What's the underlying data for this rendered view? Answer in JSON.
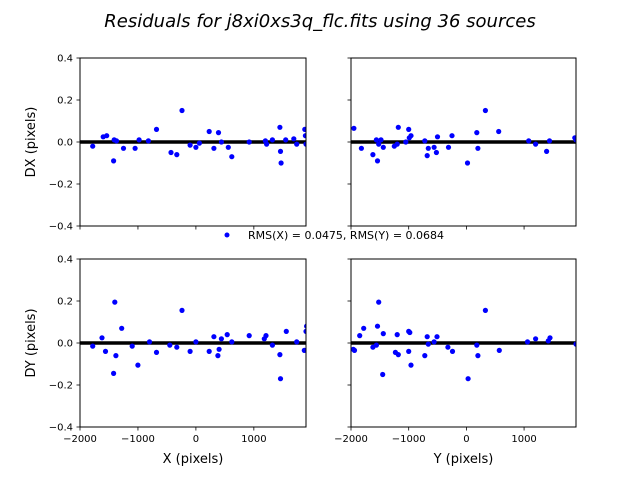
{
  "figure": {
    "title": "Residuals for j8xi0xs3q_flc.fits using 36 sources",
    "legend_label": "RMS(X) = 0.0475, RMS(Y) = 0.0684",
    "marker_color": "#0000ff",
    "zero_line_color": "#000000"
  },
  "chart_data": [
    {
      "type": "scatter",
      "panel": "top-left",
      "xlabel": "",
      "ylabel": "DX (pixels)",
      "xlim": [
        -2000,
        1900
      ],
      "ylim": [
        -0.4,
        0.4
      ],
      "xticks": [
        -2000,
        -1000,
        0,
        1000
      ],
      "yticks": [
        -0.4,
        -0.2,
        0.0,
        0.2,
        0.4
      ],
      "ytick_labels": [
        "−0.4",
        "−0.2",
        "0.0",
        "0.2",
        "0.4"
      ],
      "xtick_labels_visible": false,
      "points": [
        [
          -1780,
          -0.02
        ],
        [
          -1600,
          0.025
        ],
        [
          -1540,
          0.03
        ],
        [
          -1420,
          -0.09
        ],
        [
          -1410,
          0.01
        ],
        [
          -1370,
          0.005
        ],
        [
          -1250,
          -0.03
        ],
        [
          -1050,
          -0.03
        ],
        [
          -980,
          0.01
        ],
        [
          -820,
          0.005
        ],
        [
          -680,
          0.06
        ],
        [
          -430,
          -0.05
        ],
        [
          -330,
          -0.06
        ],
        [
          -240,
          0.15
        ],
        [
          -100,
          -0.015
        ],
        [
          0,
          -0.025
        ],
        [
          60,
          -0.005
        ],
        [
          230,
          0.05
        ],
        [
          310,
          -0.03
        ],
        [
          390,
          0.045
        ],
        [
          440,
          0
        ],
        [
          560,
          -0.025
        ],
        [
          620,
          -0.07
        ],
        [
          920,
          0
        ],
        [
          1200,
          0.005
        ],
        [
          1220,
          -0.01
        ],
        [
          1320,
          0.01
        ],
        [
          1450,
          0.07
        ],
        [
          1460,
          -0.045
        ],
        [
          1470,
          -0.1
        ],
        [
          1550,
          0.01
        ],
        [
          1690,
          0.015
        ],
        [
          1740,
          -0.01
        ],
        [
          1880,
          0.06
        ],
        [
          1890,
          0.03
        ],
        [
          1900,
          -0.01
        ]
      ]
    },
    {
      "type": "scatter",
      "panel": "top-right",
      "xlabel": "",
      "ylabel": "",
      "xlim": [
        -2000,
        1900
      ],
      "ylim": [
        -0.4,
        0.4
      ],
      "xticks": [
        -2000,
        -1000,
        0,
        1000
      ],
      "yticks": [
        -0.4,
        -0.2,
        0.0,
        0.2,
        0.4
      ],
      "xtick_labels_visible": false,
      "ytick_labels_visible": false,
      "points": [
        [
          -1950,
          0.065
        ],
        [
          -1820,
          -0.03
        ],
        [
          -1620,
          -0.06
        ],
        [
          -1560,
          0.01
        ],
        [
          -1540,
          -0.09
        ],
        [
          -1520,
          -0.01
        ],
        [
          -1480,
          0.01
        ],
        [
          -1440,
          -0.025
        ],
        [
          -1250,
          -0.02
        ],
        [
          -1200,
          -0.01
        ],
        [
          -1180,
          0.07
        ],
        [
          -1050,
          0
        ],
        [
          -1000,
          0.06
        ],
        [
          -990,
          0.02
        ],
        [
          -960,
          0.03
        ],
        [
          -720,
          0.005
        ],
        [
          -680,
          -0.065
        ],
        [
          -660,
          -0.03
        ],
        [
          -560,
          -0.025
        ],
        [
          -520,
          -0.05
        ],
        [
          -500,
          0.025
        ],
        [
          -310,
          -0.025
        ],
        [
          -250,
          0.03
        ],
        [
          20,
          -0.1
        ],
        [
          180,
          0.045
        ],
        [
          200,
          -0.03
        ],
        [
          330,
          0.15
        ],
        [
          560,
          0.05
        ],
        [
          1080,
          0.005
        ],
        [
          1200,
          -0.01
        ],
        [
          1390,
          -0.045
        ],
        [
          1440,
          0.005
        ],
        [
          1880,
          0.02
        ],
        [
          1900,
          0.01
        ]
      ]
    },
    {
      "type": "scatter",
      "panel": "bottom-left",
      "xlabel": "X (pixels)",
      "ylabel": "DY (pixels)",
      "xlim": [
        -2000,
        1900
      ],
      "ylim": [
        -0.4,
        0.4
      ],
      "xticks": [
        -2000,
        -1000,
        0,
        1000
      ],
      "xtick_labels": [
        "−2000",
        "−1000",
        "0",
        "1000"
      ],
      "yticks": [
        -0.4,
        -0.2,
        0.0,
        0.2,
        0.4
      ],
      "ytick_labels": [
        "−0.4",
        "−0.2",
        "0.0",
        "0.2",
        "0.4"
      ],
      "points": [
        [
          -1780,
          -0.015
        ],
        [
          -1620,
          0.025
        ],
        [
          -1560,
          -0.04
        ],
        [
          -1420,
          -0.145
        ],
        [
          -1400,
          0.195
        ],
        [
          -1380,
          -0.06
        ],
        [
          -1280,
          0.07
        ],
        [
          -1100,
          -0.015
        ],
        [
          -1000,
          -0.105
        ],
        [
          -800,
          0.005
        ],
        [
          -680,
          -0.045
        ],
        [
          -450,
          -0.01
        ],
        [
          -330,
          -0.02
        ],
        [
          -240,
          0.155
        ],
        [
          -100,
          -0.04
        ],
        [
          0,
          0.005
        ],
        [
          230,
          -0.04
        ],
        [
          310,
          0.03
        ],
        [
          380,
          -0.06
        ],
        [
          400,
          -0.03
        ],
        [
          440,
          0.02
        ],
        [
          540,
          0.04
        ],
        [
          620,
          0.005
        ],
        [
          920,
          0.035
        ],
        [
          1180,
          0.02
        ],
        [
          1210,
          0.035
        ],
        [
          1320,
          -0.01
        ],
        [
          1450,
          -0.055
        ],
        [
          1460,
          -0.17
        ],
        [
          1560,
          0.055
        ],
        [
          1740,
          0.005
        ],
        [
          1870,
          -0.035
        ],
        [
          1900,
          0.055
        ],
        [
          1910,
          0.08
        ]
      ]
    },
    {
      "type": "scatter",
      "panel": "bottom-right",
      "xlabel": "Y (pixels)",
      "ylabel": "",
      "xlim": [
        -2000,
        1900
      ],
      "ylim": [
        -0.4,
        0.4
      ],
      "xticks": [
        -2000,
        -1000,
        0,
        1000
      ],
      "xtick_labels": [
        "−2000",
        "−1000",
        "0",
        "1000"
      ],
      "yticks": [
        -0.4,
        -0.2,
        0.0,
        0.2,
        0.4
      ],
      "ytick_labels_visible": false,
      "points": [
        [
          -1960,
          -0.03
        ],
        [
          -1940,
          -0.035
        ],
        [
          -1850,
          0.035
        ],
        [
          -1780,
          0.07
        ],
        [
          -1620,
          -0.02
        ],
        [
          -1560,
          -0.01
        ],
        [
          -1540,
          0.08
        ],
        [
          -1520,
          0.195
        ],
        [
          -1450,
          -0.15
        ],
        [
          -1440,
          0.045
        ],
        [
          -1230,
          -0.045
        ],
        [
          -1200,
          0.04
        ],
        [
          -1180,
          -0.055
        ],
        [
          -1000,
          -0.04
        ],
        [
          -1000,
          0.055
        ],
        [
          -980,
          0.05
        ],
        [
          -960,
          -0.105
        ],
        [
          -720,
          -0.06
        ],
        [
          -680,
          0.03
        ],
        [
          -660,
          -0.005
        ],
        [
          -560,
          0.005
        ],
        [
          -510,
          0.03
        ],
        [
          -320,
          -0.02
        ],
        [
          -240,
          -0.04
        ],
        [
          30,
          -0.17
        ],
        [
          180,
          -0.01
        ],
        [
          200,
          -0.06
        ],
        [
          330,
          0.155
        ],
        [
          570,
          -0.035
        ],
        [
          1060,
          0.005
        ],
        [
          1200,
          0.02
        ],
        [
          1420,
          0.01
        ],
        [
          1450,
          0.025
        ],
        [
          1900,
          -0.005
        ]
      ]
    }
  ]
}
